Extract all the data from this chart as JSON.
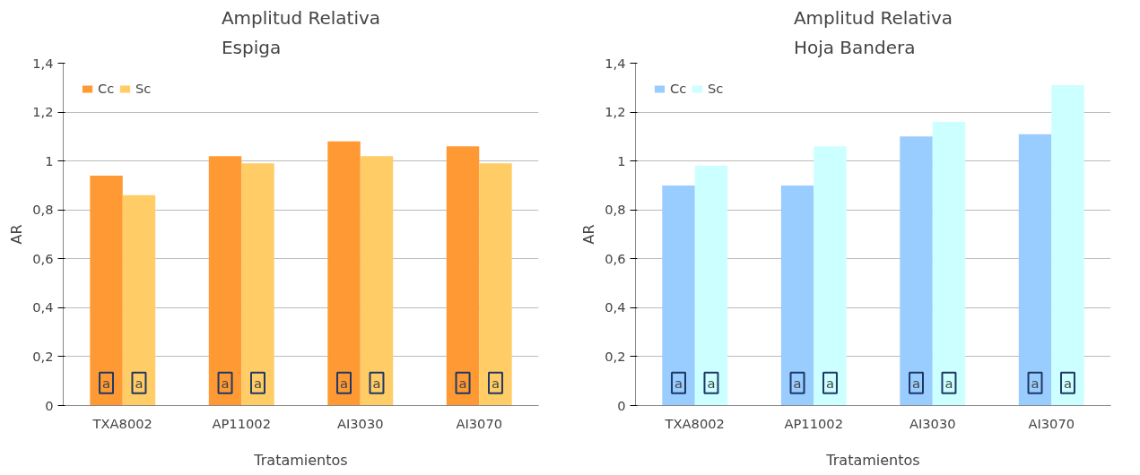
{
  "chart_data": [
    {
      "type": "bar",
      "title": "Amplitud Relativa\nEspiga",
      "xlabel": "Tratamientos",
      "ylabel": "AR",
      "categories": [
        "TXA8002",
        "AP11002",
        "AI3030",
        "AI3070"
      ],
      "series": [
        {
          "name": "Cc",
          "color": "#ff9933",
          "values": [
            0.94,
            1.02,
            1.08,
            1.06
          ]
        },
        {
          "name": "Sc",
          "color": "#ffcc66",
          "values": [
            0.86,
            0.99,
            1.02,
            0.99
          ]
        }
      ],
      "ylim": [
        0,
        1.4
      ],
      "yticks": [
        0,
        {
          "value": 0.2,
          "label": "0,2"
        },
        {
          "value": 0.4,
          "label": "0,4"
        },
        {
          "value": 0.6,
          "label": "0,6"
        },
        {
          "value": 0.8,
          "label": "0,8"
        },
        1,
        {
          "value": 1.2,
          "label": "1,2"
        },
        {
          "value": 1.4,
          "label": "1,4"
        }
      ],
      "grid": "y",
      "legend": "top left",
      "annotations": [
        {
          "text": "a",
          "x": "TXA8002",
          "y": 0.05
        },
        {
          "text": "a",
          "x": "TXA8002",
          "y": 0.05
        },
        {
          "text": "a",
          "x": "AP11002",
          "y": 0.05
        },
        {
          "text": "a",
          "x": "AP11002",
          "y": 0.05
        },
        {
          "text": "a",
          "x": "AI3030",
          "y": 0.05
        },
        {
          "text": "a",
          "x": "AI3030",
          "y": 0.05
        },
        {
          "text": "a",
          "x": "AI3070",
          "y": 0.05
        },
        {
          "text": "a",
          "x": "AI3070",
          "y": 0.05
        }
      ]
    },
    {
      "type": "bar",
      "title": "Amplitud Relativa\nHoja Bandera",
      "xlabel": "Tratamientos",
      "ylabel": "AR",
      "categories": [
        "TXA8002",
        "AP11002",
        "AI3030",
        "AI3070"
      ],
      "series": [
        {
          "name": "Cc",
          "color": "#99ccff",
          "values": [
            0.9,
            0.9,
            1.1,
            1.11
          ]
        },
        {
          "name": "Sc",
          "color": "#ccffff",
          "values": [
            0.98,
            1.06,
            1.16,
            1.31
          ]
        }
      ],
      "ylim": [
        0,
        1.4
      ],
      "yticks": [
        0,
        {
          "value": 0.2,
          "label": "0,2"
        },
        {
          "value": 0.4,
          "label": "0,4"
        },
        {
          "value": 0.6,
          "label": "0,6"
        },
        {
          "value": 0.8,
          "label": "0,8"
        },
        1,
        {
          "value": 1.2,
          "label": "1,2"
        },
        {
          "value": 1.4,
          "label": "1,4"
        }
      ],
      "grid": "y",
      "legend": "top left",
      "annotations": [
        {
          "text": "a",
          "x": "TXA8002",
          "y": 0.05
        },
        {
          "text": "a",
          "x": "TXA8002",
          "y": 0.05
        },
        {
          "text": "a",
          "x": "AP11002",
          "y": 0.05
        },
        {
          "text": "a",
          "x": "AP11002",
          "y": 0.05
        },
        {
          "text": "a",
          "x": "AI3030",
          "y": 0.05
        },
        {
          "text": "a",
          "x": "AI3030",
          "y": 0.05
        },
        {
          "text": "a",
          "x": "AI3070",
          "y": 0.05
        },
        {
          "text": "a",
          "x": "AI3070",
          "y": 0.05
        }
      ]
    }
  ]
}
